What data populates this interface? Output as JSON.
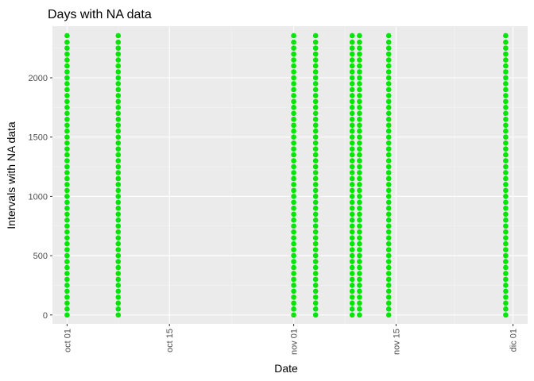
{
  "chart_data": {
    "type": "scatter",
    "title": "Days with NA data",
    "xlabel": "Date",
    "ylabel": "Intervals with NA data",
    "x_ticks": [
      {
        "date": "2012-10-01",
        "label": "oct 01"
      },
      {
        "date": "2012-10-15",
        "label": "oct 15"
      },
      {
        "date": "2012-11-01",
        "label": "nov 01"
      },
      {
        "date": "2012-11-15",
        "label": "nov 15"
      },
      {
        "date": "2012-12-01",
        "label": "dic 01"
      }
    ],
    "xlim": [
      "2012-09-29",
      "2012-12-03"
    ],
    "y_ticks": [
      0,
      500,
      1000,
      1500,
      2000
    ],
    "ylim": [
      -75,
      2435
    ],
    "grid": true,
    "point_color": "#00e600",
    "panel_background": "#ebebeb",
    "dates": [
      "2012-10-01",
      "2012-10-08",
      "2012-11-01",
      "2012-11-04",
      "2012-11-09",
      "2012-11-10",
      "2012-11-14",
      "2012-11-30"
    ],
    "intervals": [
      0,
      50,
      100,
      150,
      200,
      250,
      300,
      350,
      400,
      450,
      500,
      550,
      600,
      650,
      700,
      750,
      800,
      850,
      900,
      950,
      1000,
      1050,
      1100,
      1150,
      1200,
      1250,
      1300,
      1350,
      1400,
      1450,
      1500,
      1550,
      1600,
      1650,
      1700,
      1750,
      1800,
      1850,
      1900,
      1950,
      2000,
      2050,
      2100,
      2150,
      2200,
      2250,
      2300,
      2355
    ]
  }
}
